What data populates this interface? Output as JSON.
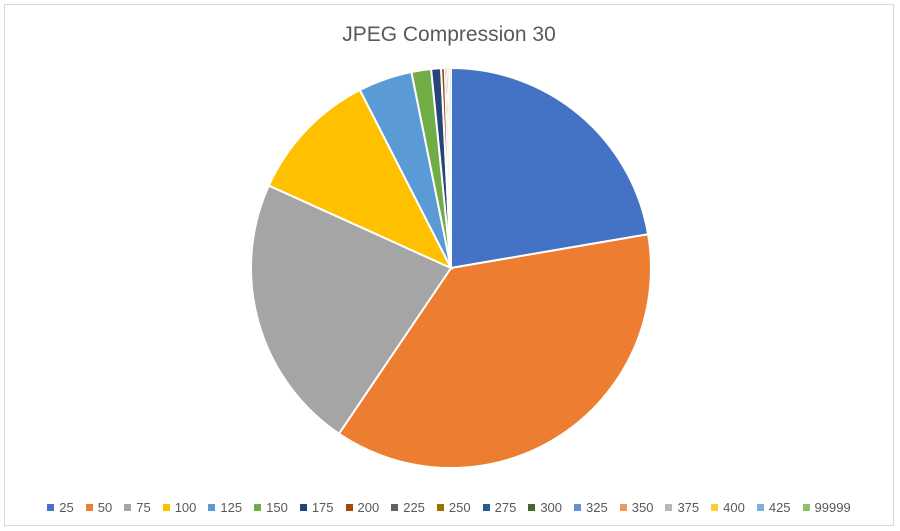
{
  "chart_data": {
    "type": "pie",
    "title": "JPEG Compression 30",
    "legend_position": "bottom",
    "slices": [
      {
        "label": "25",
        "value": 22.5,
        "color": "#4472C4"
      },
      {
        "label": "50",
        "value": 37.5,
        "color": "#ED7D31"
      },
      {
        "label": "75",
        "value": 22.5,
        "color": "#A5A5A5"
      },
      {
        "label": "100",
        "value": 10.8,
        "color": "#FFC000"
      },
      {
        "label": "125",
        "value": 4.4,
        "color": "#5B9BD5"
      },
      {
        "label": "150",
        "value": 1.6,
        "color": "#70AD47"
      },
      {
        "label": "175",
        "value": 0.8,
        "color": "#264478"
      },
      {
        "label": "200",
        "value": 0.3,
        "color": "#9E480E"
      },
      {
        "label": "225",
        "value": 0.05,
        "color": "#636363"
      },
      {
        "label": "250",
        "value": 0.05,
        "color": "#997300"
      },
      {
        "label": "275",
        "value": 0.05,
        "color": "#255E91"
      },
      {
        "label": "300",
        "value": 0.05,
        "color": "#43682B"
      },
      {
        "label": "325",
        "value": 0.05,
        "color": "#698ED0"
      },
      {
        "label": "350",
        "value": 0.05,
        "color": "#F1975A"
      },
      {
        "label": "375",
        "value": 0.05,
        "color": "#B7B7B7"
      },
      {
        "label": "400",
        "value": 0.05,
        "color": "#FFCD33"
      },
      {
        "label": "425",
        "value": 0.05,
        "color": "#7CAFDD"
      },
      {
        "label": "99999",
        "value": 0.05,
        "color": "#8CC168"
      }
    ]
  }
}
